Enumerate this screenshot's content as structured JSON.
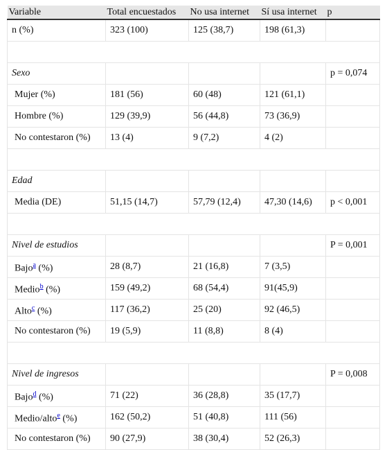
{
  "table": {
    "header": [
      "Variable",
      "Total encuestados",
      "No usa internet",
      "Sí usa internet",
      "p"
    ],
    "groups": [
      {
        "rows": [
          [
            "n (%)",
            "323 (100)",
            "125 (38,7)",
            "198 (61,3)"
          ]
        ]
      },
      {
        "title": "Sexo",
        "p": "p = 0,074",
        "rows": [
          [
            "Mujer (%)",
            "181 (56)",
            "60 (48)",
            "121 (61,1)"
          ],
          [
            "Hombre (%)",
            "129 (39,9)",
            "56 (44,8)",
            "73 (36,9)"
          ],
          [
            "No contestaron (%)",
            "13 (4)",
            "9 (7,2)",
            "4 (2)"
          ]
        ]
      },
      {
        "title": "Edad",
        "rows": [
          [
            "Media (DE)",
            "51,15 (14,7)",
            "57,79 (12,4)",
            "47,30 (14,6)",
            "p < 0,001"
          ]
        ]
      },
      {
        "title": "Nivel de estudios",
        "p": "P = 0,001",
        "rows": [
          [
            {
              "text": "Bajo",
              "note": "a",
              "suffix": "(%)"
            },
            "28 (8,7)",
            "21 (16,8)",
            "7 (3,5)"
          ],
          [
            {
              "text": "Medio",
              "note": "b",
              "suffix": "(%)"
            },
            "159 (49,2)",
            "68 (54,4)",
            "91(45,9)"
          ],
          [
            {
              "text": "Alto",
              "note": "c",
              "suffix": "(%)"
            },
            "117 (36,2)",
            "25 (20)",
            "92 (46,5)"
          ],
          [
            "No contestaron (%)",
            "19 (5,9)",
            "11 (8,8)",
            "8 (4)"
          ]
        ]
      },
      {
        "title": "Nivel de ingresos",
        "p": "P = 0,008",
        "rows": [
          [
            {
              "text": "Bajo",
              "note": "d",
              "suffix": "(%)"
            },
            "71 (22)",
            "36 (28,8)",
            "35 (17,7)"
          ],
          [
            {
              "text": "Medio/alto",
              "note": "e",
              "suffix": "(%)"
            },
            "162 (50,2)",
            "51 (40,8)",
            "111 (56)"
          ],
          [
            "No contestaron (%)",
            "90 (27,9)",
            "38 (30,4)",
            "52 (26,3)"
          ]
        ]
      }
    ]
  }
}
